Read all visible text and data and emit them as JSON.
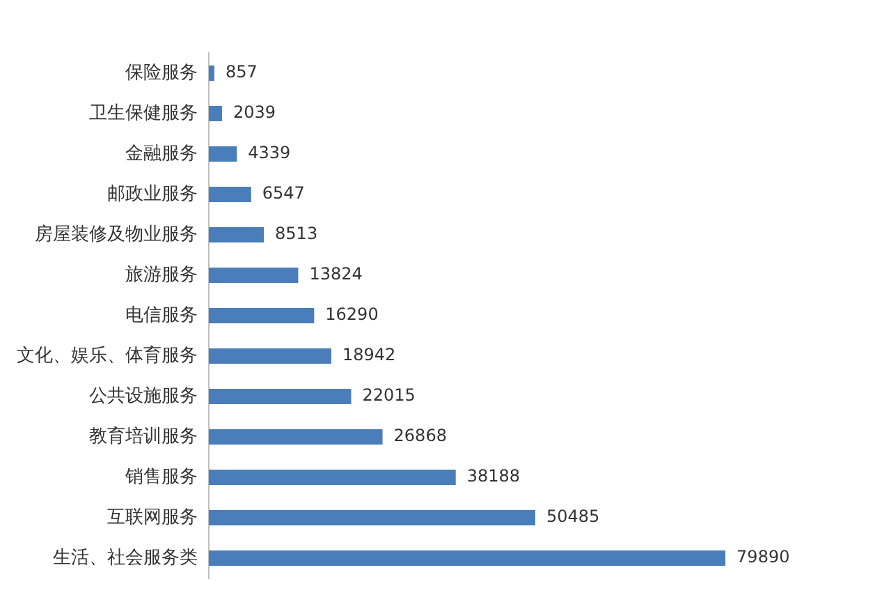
{
  "chart_data": {
    "type": "bar",
    "orientation": "horizontal",
    "data_labels": true,
    "color": "#4a7ebb",
    "categories": [
      "保险服务",
      "卫生保健服务",
      "金融服务",
      "邮政业服务",
      "房屋装修及物业服务",
      "旅游服务",
      "电信服务",
      "文化、娱乐、体育服务",
      "公共设施服务",
      "教育培训服务",
      "销售服务",
      "互联网服务",
      "生活、社会服务类"
    ],
    "values": [
      857,
      2039,
      4339,
      6547,
      8513,
      13824,
      16290,
      18942,
      22015,
      26868,
      38188,
      50485,
      79890
    ]
  }
}
